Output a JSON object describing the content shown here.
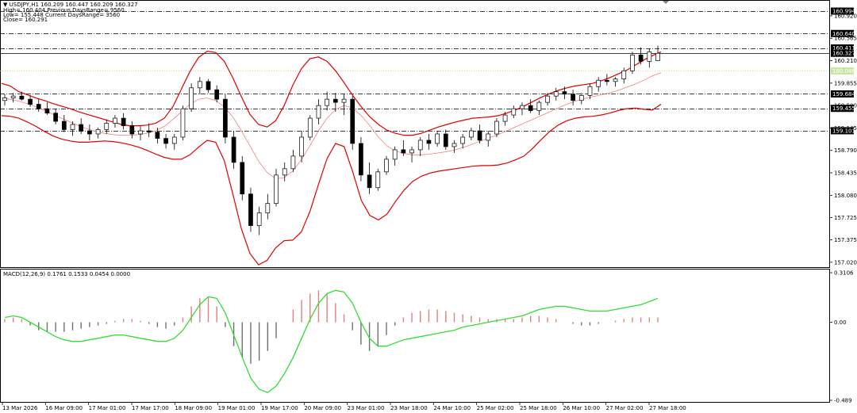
{
  "symbol_title": "USDJPY,H1",
  "ohlc": "160.209 160.447 160.209 160.327",
  "info_lines": [
    "High= 160.404 Previous DaysRange= 9560",
    "Low= 155.448 Current DaysRange= 3560",
    "Close= 160.291"
  ],
  "macd_label": "MACD(12,26,9) 0.1761 0.1533 0.0454 0.0000",
  "colors": {
    "bollinger": "#e00000",
    "middle_band": "#f08080",
    "macd_signal": "#33dd33",
    "hist_positive": "#e08080",
    "hist_negative": "#707070",
    "candle": "#000000",
    "label_box": "#000000",
    "current_price_box": "#c8e6a0"
  },
  "price_axis": {
    "ticks": [
      "160.920",
      "160.565",
      "160.210",
      "159.855",
      "159.500",
      "159.145",
      "158.790",
      "158.435",
      "158.080",
      "157.725",
      "157.375",
      "157.020"
    ],
    "min": 156.98,
    "max": 161.12
  },
  "levels": [
    {
      "label": "160.994",
      "value": 160.994,
      "style": "dashdot",
      "boxed": true
    },
    {
      "label": "160.640",
      "value": 160.64,
      "style": "dashdot",
      "boxed": true
    },
    {
      "label": "160.411",
      "value": 160.411,
      "style": "dashdot",
      "boxed": true
    },
    {
      "label": "160.327",
      "value": 160.327,
      "style": "solid",
      "boxed": true
    },
    {
      "label": "160.048",
      "value": 160.048,
      "style": "dotted",
      "boxed": true,
      "current": true
    },
    {
      "label": "159.684",
      "value": 159.684,
      "style": "dashdot",
      "boxed": true
    },
    {
      "label": "159.455",
      "value": 159.455,
      "style": "dashdot",
      "boxed": true
    },
    {
      "label": "159.101",
      "value": 159.101,
      "style": "dashdot",
      "boxed": true
    }
  ],
  "macd_axis": {
    "ticks": [
      "0.3106",
      "0.00",
      "-0.489"
    ],
    "min": -0.489,
    "max": 0.3106
  },
  "time_axis": [
    "13 Mar 2026",
    "16 Mar 09:00",
    "17 Mar 01:00",
    "17 Mar 17:00",
    "18 Mar 09:00",
    "19 Mar 01:00",
    "19 Mar 17:00",
    "20 Mar 09:00",
    "23 Mar 01:00",
    "23 Mar 18:00",
    "24 Mar 10:00",
    "25 Mar 02:00",
    "25 Mar 18:00",
    "26 Mar 10:00",
    "27 Mar 02:00",
    "27 Mar 18:00"
  ],
  "chart_data": {
    "type": "line",
    "symbol": "USDJPY",
    "timeframe": "H1",
    "bollinger_upper": [
      159.85,
      159.81,
      159.72,
      159.67,
      159.62,
      159.58,
      159.53,
      159.49,
      159.45,
      159.4,
      159.36,
      159.32,
      159.28,
      159.24,
      159.2,
      159.18,
      159.18,
      159.19,
      159.22,
      159.3,
      159.48,
      159.76,
      160.04,
      160.26,
      160.36,
      160.34,
      160.2,
      159.94,
      159.64,
      159.36,
      159.2,
      159.16,
      159.26,
      159.5,
      159.82,
      160.08,
      160.24,
      160.27,
      160.2,
      160.05,
      159.86,
      159.66,
      159.48,
      159.32,
      159.2,
      159.11,
      159.06,
      159.03,
      159.03,
      159.06,
      159.11,
      159.16,
      159.2,
      159.24,
      159.27,
      159.3,
      159.31,
      159.32,
      159.34,
      159.38,
      159.43,
      159.49,
      159.56,
      159.63,
      159.69,
      159.74,
      159.78,
      159.81,
      159.83,
      159.85,
      159.89,
      159.94,
      160.0,
      160.06,
      160.14,
      160.22,
      160.29,
      160.35
    ],
    "bollinger_middle": [
      159.62,
      159.6,
      159.57,
      159.53,
      159.48,
      159.42,
      159.36,
      159.3,
      159.24,
      159.18,
      159.13,
      159.09,
      159.06,
      159.04,
      159.03,
      159.03,
      159.04,
      159.06,
      159.1,
      159.17,
      159.28,
      159.4,
      159.52,
      159.6,
      159.62,
      159.58,
      159.48,
      159.32,
      159.1,
      158.86,
      158.62,
      158.44,
      158.34,
      158.36,
      158.46,
      158.64,
      158.86,
      159.1,
      159.3,
      159.44,
      159.5,
      159.46,
      159.34,
      159.18,
      159.0,
      158.86,
      158.78,
      158.74,
      158.72,
      158.72,
      158.73,
      158.75,
      158.77,
      158.8,
      158.84,
      158.89,
      158.94,
      158.99,
      159.04,
      159.1,
      159.16,
      159.22,
      159.28,
      159.34,
      159.4,
      159.46,
      159.52,
      159.57,
      159.61,
      159.64,
      159.67,
      159.7,
      159.74,
      159.79,
      159.84,
      159.9,
      159.97,
      160.02
    ],
    "bollinger_lower": [
      159.34,
      159.33,
      159.3,
      159.24,
      159.17,
      159.09,
      159.02,
      158.97,
      158.94,
      158.92,
      158.92,
      158.93,
      158.94,
      158.93,
      158.91,
      158.88,
      158.84,
      158.79,
      158.73,
      158.68,
      158.65,
      158.65,
      158.72,
      158.84,
      158.95,
      158.92,
      158.63,
      158.1,
      157.55,
      157.16,
      156.98,
      157.05,
      157.25,
      157.36,
      157.37,
      157.5,
      157.82,
      158.25,
      158.66,
      158.9,
      158.85,
      158.45,
      158.0,
      157.76,
      157.69,
      157.78,
      157.98,
      158.16,
      158.3,
      158.38,
      158.43,
      158.46,
      158.48,
      158.5,
      158.52,
      158.54,
      158.55,
      158.55,
      158.56,
      158.59,
      158.64,
      158.7,
      158.82,
      158.96,
      159.09,
      159.19,
      159.26,
      159.3,
      159.32,
      159.33,
      159.35,
      159.38,
      159.42,
      159.45,
      159.46,
      159.44,
      159.43,
      159.52
    ],
    "candles_ohlc": [
      [
        159.58,
        159.68,
        159.5,
        159.62
      ],
      [
        159.62,
        159.7,
        159.55,
        159.65
      ],
      [
        159.65,
        159.72,
        159.58,
        159.6
      ],
      [
        159.6,
        159.66,
        159.48,
        159.52
      ],
      [
        159.52,
        159.6,
        159.4,
        159.45
      ],
      [
        159.45,
        159.55,
        159.35,
        159.38
      ],
      [
        159.38,
        159.45,
        159.2,
        159.25
      ],
      [
        159.25,
        159.35,
        159.08,
        159.12
      ],
      [
        159.12,
        159.25,
        159.02,
        159.2
      ],
      [
        159.2,
        159.3,
        159.05,
        159.1
      ],
      [
        159.1,
        159.2,
        158.95,
        159.05
      ],
      [
        159.05,
        159.15,
        158.98,
        159.12
      ],
      [
        159.12,
        159.28,
        159.05,
        159.22
      ],
      [
        159.22,
        159.35,
        159.15,
        159.3
      ],
      [
        159.3,
        159.38,
        159.12,
        159.18
      ],
      [
        159.18,
        159.25,
        158.98,
        159.05
      ],
      [
        159.05,
        159.18,
        158.95,
        159.1
      ],
      [
        159.1,
        159.22,
        159.0,
        159.08
      ],
      [
        159.08,
        159.15,
        158.9,
        158.98
      ],
      [
        158.98,
        159.05,
        158.82,
        158.9
      ],
      [
        158.9,
        159.05,
        158.8,
        159.0
      ],
      [
        159.0,
        159.5,
        158.95,
        159.45
      ],
      [
        159.45,
        159.85,
        159.4,
        159.78
      ],
      [
        159.78,
        159.95,
        159.68,
        159.88
      ],
      [
        159.88,
        159.92,
        159.7,
        159.75
      ],
      [
        159.75,
        159.82,
        159.55,
        159.6
      ],
      [
        159.6,
        159.68,
        158.9,
        159.0
      ],
      [
        159.0,
        159.1,
        158.5,
        158.6
      ],
      [
        158.6,
        158.7,
        158.0,
        158.1
      ],
      [
        158.1,
        158.2,
        157.5,
        157.6
      ],
      [
        157.6,
        157.9,
        157.45,
        157.8
      ],
      [
        157.8,
        158.1,
        157.7,
        157.95
      ],
      [
        157.95,
        158.5,
        157.9,
        158.4
      ],
      [
        158.4,
        158.6,
        158.3,
        158.5
      ],
      [
        158.5,
        158.8,
        158.45,
        158.7
      ],
      [
        158.7,
        159.1,
        158.6,
        159.0
      ],
      [
        159.0,
        159.35,
        158.95,
        159.3
      ],
      [
        159.3,
        159.6,
        159.2,
        159.5
      ],
      [
        159.5,
        159.72,
        159.42,
        159.6
      ],
      [
        159.6,
        159.7,
        159.4,
        159.55
      ],
      [
        159.55,
        159.68,
        159.35,
        159.6
      ],
      [
        159.6,
        159.65,
        158.8,
        158.9
      ],
      [
        158.9,
        159.0,
        158.3,
        158.4
      ],
      [
        158.4,
        158.6,
        158.1,
        158.2
      ],
      [
        158.2,
        158.5,
        158.15,
        158.45
      ],
      [
        158.45,
        158.7,
        158.4,
        158.65
      ],
      [
        158.65,
        158.85,
        158.55,
        158.8
      ],
      [
        158.8,
        158.95,
        158.7,
        158.75
      ],
      [
        158.75,
        158.85,
        158.6,
        158.8
      ],
      [
        158.8,
        159.0,
        158.7,
        158.95
      ],
      [
        158.95,
        159.05,
        158.8,
        158.9
      ],
      [
        158.9,
        159.1,
        158.85,
        159.05
      ],
      [
        159.05,
        159.12,
        158.8,
        158.85
      ],
      [
        158.85,
        158.95,
        158.75,
        158.9
      ],
      [
        158.9,
        159.05,
        158.82,
        159.0
      ],
      [
        159.0,
        159.15,
        158.95,
        159.1
      ],
      [
        159.1,
        159.2,
        158.9,
        158.95
      ],
      [
        158.95,
        159.1,
        158.85,
        159.05
      ],
      [
        159.05,
        159.3,
        159.0,
        159.25
      ],
      [
        159.25,
        159.4,
        159.18,
        159.35
      ],
      [
        159.35,
        159.5,
        159.3,
        159.45
      ],
      [
        159.45,
        159.55,
        159.35,
        159.5
      ],
      [
        159.5,
        159.6,
        159.38,
        159.42
      ],
      [
        159.42,
        159.58,
        159.35,
        159.55
      ],
      [
        159.55,
        159.7,
        159.5,
        159.65
      ],
      [
        159.65,
        159.78,
        159.58,
        159.72
      ],
      [
        159.72,
        159.8,
        159.6,
        159.68
      ],
      [
        159.68,
        159.75,
        159.5,
        159.58
      ],
      [
        159.58,
        159.7,
        159.52,
        159.66
      ],
      [
        159.66,
        159.85,
        159.6,
        159.8
      ],
      [
        159.8,
        159.95,
        159.72,
        159.9
      ],
      [
        159.9,
        160.0,
        159.82,
        159.88
      ],
      [
        159.88,
        159.95,
        159.8,
        159.92
      ],
      [
        159.92,
        160.1,
        159.85,
        160.05
      ],
      [
        160.05,
        160.35,
        160.0,
        160.3
      ],
      [
        160.3,
        160.42,
        160.15,
        160.2
      ],
      [
        160.2,
        160.4,
        160.1,
        160.35
      ],
      [
        160.21,
        160.447,
        160.209,
        160.327
      ]
    ],
    "macd_main": [
      0.03,
      0.04,
      0.03,
      0.0,
      -0.03,
      -0.06,
      -0.09,
      -0.11,
      -0.12,
      -0.12,
      -0.11,
      -0.1,
      -0.09,
      -0.08,
      -0.08,
      -0.09,
      -0.1,
      -0.11,
      -0.12,
      -0.12,
      -0.1,
      -0.05,
      0.03,
      0.11,
      0.16,
      0.15,
      0.06,
      -0.08,
      -0.22,
      -0.35,
      -0.42,
      -0.44,
      -0.4,
      -0.32,
      -0.22,
      -0.1,
      0.02,
      0.12,
      0.18,
      0.2,
      0.19,
      0.12,
      0.0,
      -0.1,
      -0.15,
      -0.15,
      -0.13,
      -0.11,
      -0.1,
      -0.09,
      -0.08,
      -0.07,
      -0.06,
      -0.05,
      -0.03,
      -0.02,
      -0.01,
      0.0,
      0.01,
      0.02,
      0.03,
      0.04,
      0.06,
      0.08,
      0.09,
      0.1,
      0.1,
      0.09,
      0.08,
      0.07,
      0.07,
      0.07,
      0.08,
      0.09,
      0.1,
      0.11,
      0.13,
      0.15
    ],
    "macd_histogram": [
      0.02,
      0.03,
      0.02,
      -0.02,
      -0.05,
      -0.06,
      -0.06,
      -0.06,
      -0.05,
      -0.04,
      -0.03,
      -0.02,
      -0.01,
      0.01,
      0.02,
      0.02,
      0.01,
      -0.01,
      -0.03,
      -0.04,
      -0.02,
      0.03,
      0.1,
      0.15,
      0.16,
      0.1,
      -0.03,
      -0.15,
      -0.22,
      -0.26,
      -0.24,
      -0.18,
      -0.1,
      0.0,
      0.08,
      0.14,
      0.18,
      0.2,
      0.18,
      0.12,
      0.05,
      -0.05,
      -0.14,
      -0.18,
      -0.15,
      -0.08,
      -0.02,
      0.03,
      0.06,
      0.07,
      0.08,
      0.08,
      0.07,
      0.06,
      0.05,
      0.04,
      0.03,
      0.02,
      0.02,
      0.02,
      0.02,
      0.03,
      0.04,
      0.04,
      0.03,
      0.02,
      0.0,
      -0.01,
      -0.02,
      -0.02,
      -0.01,
      0.0,
      0.01,
      0.02,
      0.03,
      0.03,
      0.03,
      0.03
    ]
  }
}
